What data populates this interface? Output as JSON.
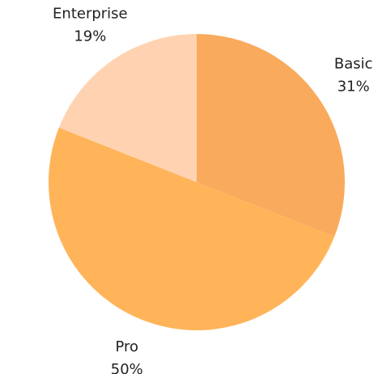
{
  "chart_data": {
    "type": "pie",
    "categories": [
      "Basic",
      "Pro",
      "Enterprise"
    ],
    "values": [
      31,
      50,
      19
    ],
    "value_labels": [
      "31%",
      "50%",
      "19%"
    ],
    "colors": [
      "#f9aa5c",
      "#ffb45a",
      "#ffd3b1"
    ]
  }
}
